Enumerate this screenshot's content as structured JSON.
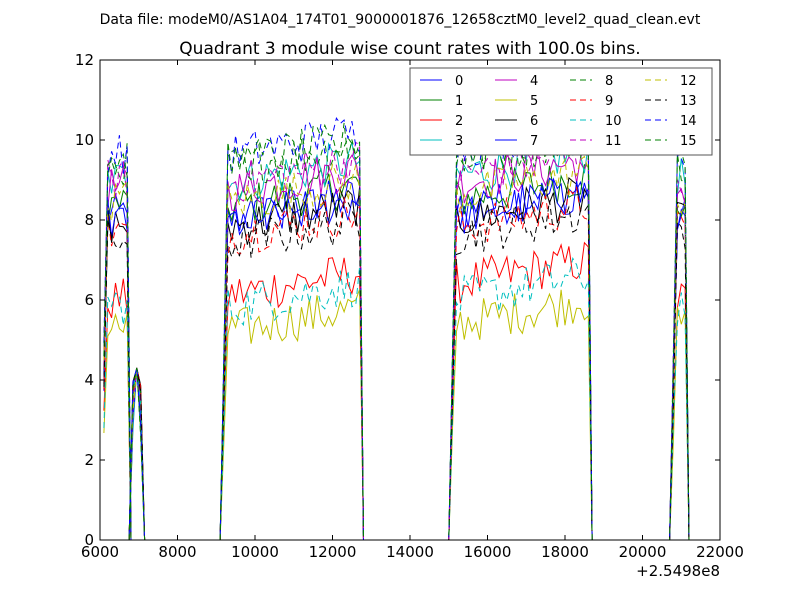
{
  "chart_data": {
    "type": "line",
    "suptitle": "Data file: modeM0/AS1A04_174T01_9000001876_12658cztM0_level2_quad_clean.evt",
    "title": "Quadrant 3 module wise count rates with 100.0s bins.",
    "x_offset_label": "+2.5498e8",
    "xlim": [
      6000,
      22000
    ],
    "ylim": [
      0,
      12
    ],
    "x_ticks": [
      6000,
      8000,
      10000,
      12000,
      14000,
      16000,
      18000,
      20000,
      22000
    ],
    "y_ticks": [
      0,
      2,
      4,
      6,
      8,
      10,
      12
    ],
    "legend_position": "top-right",
    "grid": false,
    "segments": [
      {
        "start": 6100,
        "end": 6700
      },
      {
        "start": 6850,
        "end": 7050
      },
      {
        "start": 9200,
        "end": 12700
      },
      {
        "start": 15100,
        "end": 18600
      },
      {
        "start": 20800,
        "end": 21100
      }
    ],
    "series": [
      {
        "name": "0",
        "color": "#0000ff",
        "dash": "solid",
        "level": 8.1,
        "values": [
          8.1,
          8.3,
          8.0,
          8.2
        ]
      },
      {
        "name": "1",
        "color": "#008000",
        "dash": "solid",
        "level": 8.4,
        "values": [
          8.4,
          8.6,
          8.3,
          8.5
        ]
      },
      {
        "name": "2",
        "color": "#ff0000",
        "dash": "solid",
        "level": 6.2,
        "values": [
          6.0,
          6.3,
          6.1,
          6.4
        ]
      },
      {
        "name": "3",
        "color": "#00bfbf",
        "dash": "solid",
        "level": 9.0,
        "values": [
          9.0,
          9.2,
          8.9,
          9.1
        ]
      },
      {
        "name": "4",
        "color": "#bf00bf",
        "dash": "solid",
        "level": 8.9,
        "values": [
          8.8,
          9.0,
          8.7,
          8.9
        ]
      },
      {
        "name": "5",
        "color": "#bfbf00",
        "dash": "solid",
        "level": 5.3,
        "values": [
          5.3,
          5.5,
          5.2,
          5.4
        ]
      },
      {
        "name": "6",
        "color": "#000000",
        "dash": "solid",
        "level": 8.0,
        "values": [
          7.9,
          8.1,
          7.8,
          8.0
        ]
      },
      {
        "name": "7",
        "color": "#0000ff",
        "dash": "solid",
        "level": 8.0,
        "values": [
          8.0,
          8.2,
          7.9,
          8.1
        ]
      },
      {
        "name": "8",
        "color": "#008000",
        "dash": "dashed",
        "level": 9.4,
        "values": [
          9.4,
          9.6,
          9.3,
          9.5
        ]
      },
      {
        "name": "9",
        "color": "#ff0000",
        "dash": "dashed",
        "level": 7.8,
        "values": [
          7.7,
          7.9,
          7.6,
          7.8
        ]
      },
      {
        "name": "10",
        "color": "#00bfbf",
        "dash": "dashed",
        "level": 6.0,
        "values": [
          5.9,
          6.1,
          5.8,
          6.0
        ]
      },
      {
        "name": "11",
        "color": "#bf00bf",
        "dash": "dashed",
        "level": 9.1,
        "values": [
          9.0,
          9.2,
          8.9,
          9.1
        ]
      },
      {
        "name": "12",
        "color": "#bfbf00",
        "dash": "dashed",
        "level": 8.6,
        "values": [
          8.5,
          8.7,
          8.4,
          8.6
        ]
      },
      {
        "name": "13",
        "color": "#000000",
        "dash": "dashed",
        "level": 7.6,
        "values": [
          7.5,
          7.7,
          7.4,
          7.6
        ]
      },
      {
        "name": "14",
        "color": "#0000ff",
        "dash": "dashed",
        "level": 9.7,
        "values": [
          9.7,
          9.9,
          9.6,
          9.8
        ]
      },
      {
        "name": "15",
        "color": "#008000",
        "dash": "dashed",
        "level": 9.5,
        "values": [
          9.5,
          9.7,
          9.4,
          9.6
        ]
      }
    ]
  }
}
